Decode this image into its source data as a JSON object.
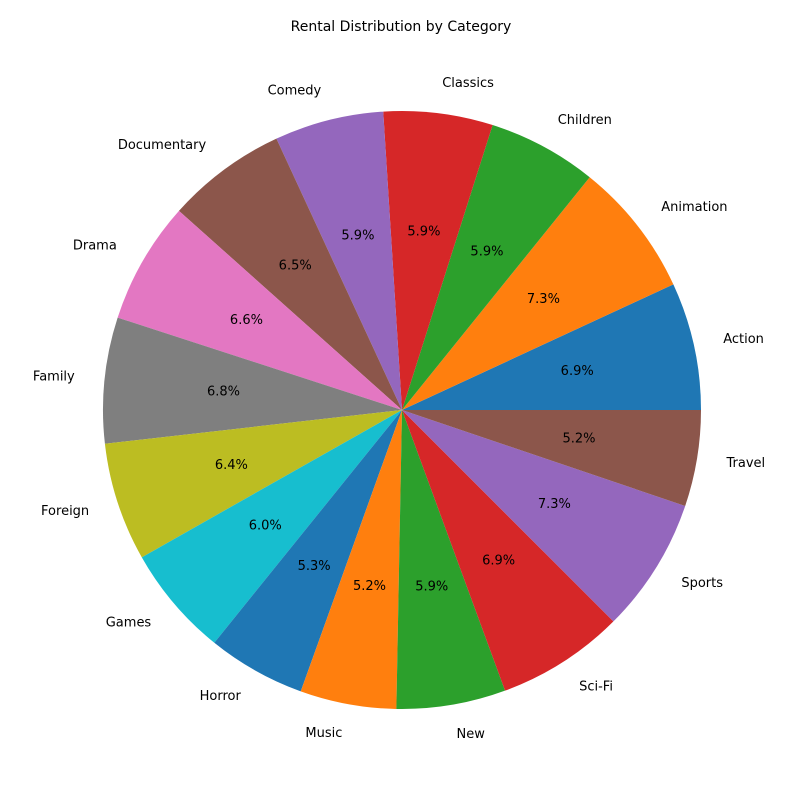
{
  "chart_data": {
    "type": "pie",
    "title": "Rental Distribution by Category",
    "start_angle_deg": 0,
    "direction": "counterclockwise",
    "slices": [
      {
        "label": "Action",
        "value": 6.9,
        "pct_label": "6.9%",
        "color": "#1f77b4"
      },
      {
        "label": "Animation",
        "value": 7.3,
        "pct_label": "7.3%",
        "color": "#ff7f0e"
      },
      {
        "label": "Children",
        "value": 5.9,
        "pct_label": "5.9%",
        "color": "#2ca02c"
      },
      {
        "label": "Classics",
        "value": 5.9,
        "pct_label": "5.9%",
        "color": "#d62728"
      },
      {
        "label": "Comedy",
        "value": 5.9,
        "pct_label": "5.9%",
        "color": "#9467bd"
      },
      {
        "label": "Documentary",
        "value": 6.5,
        "pct_label": "6.5%",
        "color": "#8c564b"
      },
      {
        "label": "Drama",
        "value": 6.6,
        "pct_label": "6.6%",
        "color": "#e377c2"
      },
      {
        "label": "Family",
        "value": 6.8,
        "pct_label": "6.8%",
        "color": "#7f7f7f"
      },
      {
        "label": "Foreign",
        "value": 6.4,
        "pct_label": "6.4%",
        "color": "#bcbd22"
      },
      {
        "label": "Games",
        "value": 6.0,
        "pct_label": "6.0%",
        "color": "#17becf"
      },
      {
        "label": "Horror",
        "value": 5.3,
        "pct_label": "5.3%",
        "color": "#1f77b4"
      },
      {
        "label": "Music",
        "value": 5.2,
        "pct_label": "5.2%",
        "color": "#ff7f0e"
      },
      {
        "label": "New",
        "value": 5.9,
        "pct_label": "5.9%",
        "color": "#2ca02c"
      },
      {
        "label": "Sci-Fi",
        "value": 6.9,
        "pct_label": "6.9%",
        "color": "#d62728"
      },
      {
        "label": "Sports",
        "value": 7.3,
        "pct_label": "7.3%",
        "color": "#9467bd"
      },
      {
        "label": "Travel",
        "value": 5.2,
        "pct_label": "5.2%",
        "color": "#8c564b"
      }
    ]
  }
}
